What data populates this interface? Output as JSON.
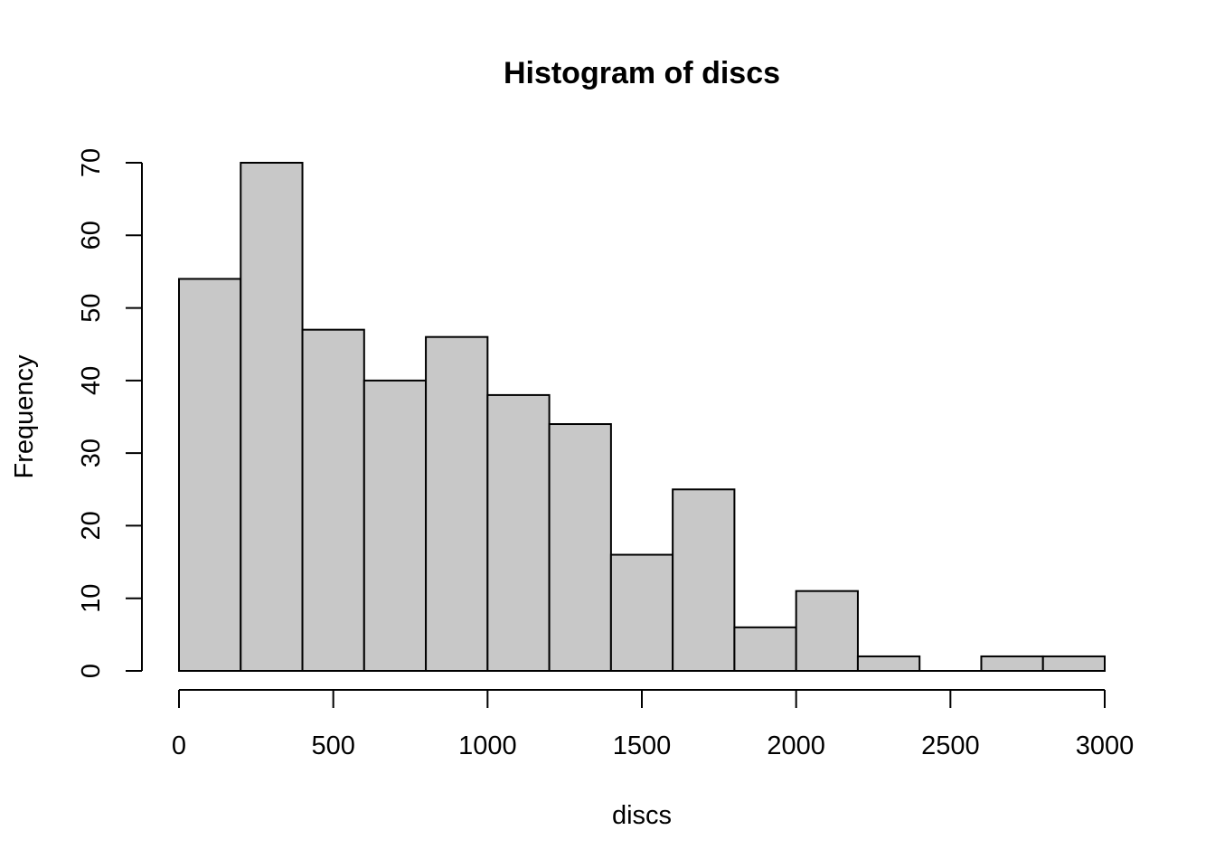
{
  "chart_data": {
    "type": "bar",
    "title": "Histogram of discs",
    "xlabel": "discs",
    "ylabel": "Frequency",
    "bin_edges": [
      0,
      200,
      400,
      600,
      800,
      1000,
      1200,
      1400,
      1600,
      1800,
      2000,
      2200,
      2400,
      2600,
      2800,
      3000
    ],
    "values": [
      54,
      70,
      47,
      40,
      46,
      38,
      34,
      16,
      25,
      6,
      11,
      2,
      0,
      2,
      2
    ],
    "xlim": [
      0,
      3000
    ],
    "ylim": [
      0,
      70
    ],
    "x_ticks": [
      0,
      500,
      1000,
      1500,
      2000,
      2500,
      3000
    ],
    "y_ticks": [
      0,
      10,
      20,
      30,
      40,
      50,
      60,
      70
    ],
    "bar_color": "#c8c8c8",
    "grid": false
  }
}
